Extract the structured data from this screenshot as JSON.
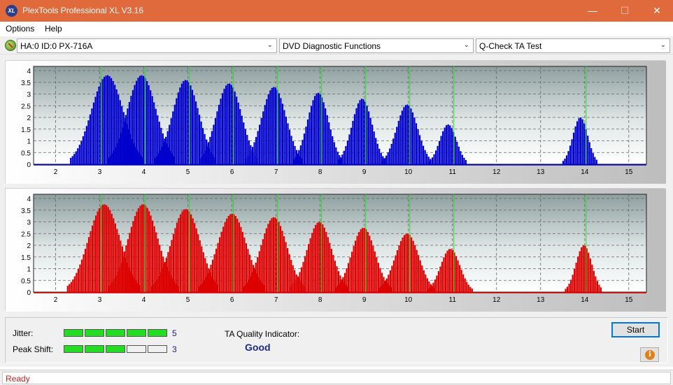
{
  "window": {
    "title": "PlexTools Professional XL V3.16",
    "app_icon_text": "XL",
    "minimize_glyph": "—",
    "maximize_glyph": "☐",
    "close_glyph": "✕"
  },
  "menu": {
    "items": [
      "Options",
      "Help"
    ]
  },
  "toolbar": {
    "drive": "HA:0 ID:0  PX-716A",
    "function": "DVD Diagnostic Functions",
    "test": "Q-Check TA Test",
    "arrow_glyph": "⌄"
  },
  "chart_data": [
    {
      "type": "bar",
      "series": [
        {
          "name": "",
          "color": "#0000cc"
        }
      ],
      "xlim": [
        1.5,
        15.4
      ],
      "ylim": [
        0,
        4
      ],
      "x_ticks": [
        "2",
        "3",
        "4",
        "5",
        "6",
        "7",
        "8",
        "9",
        "10",
        "11",
        "12",
        "13",
        "14",
        "15"
      ],
      "y_ticks": [
        "0",
        "0.5",
        "1",
        "1.5",
        "2",
        "2.5",
        "3",
        "3.5",
        "4"
      ],
      "marker_lines": [
        3,
        4,
        5,
        6,
        7,
        8,
        9,
        10,
        11,
        14
      ],
      "grid": true,
      "peaks": [
        {
          "center": 3.17,
          "height": 3.8,
          "width": 0.36
        },
        {
          "center": 3.95,
          "height": 3.8,
          "width": 0.33
        },
        {
          "center": 4.95,
          "height": 3.6,
          "width": 0.3
        },
        {
          "center": 5.93,
          "height": 3.45,
          "width": 0.29
        },
        {
          "center": 6.95,
          "height": 3.3,
          "width": 0.28
        },
        {
          "center": 7.95,
          "height": 3.05,
          "width": 0.24
        },
        {
          "center": 8.95,
          "height": 2.8,
          "width": 0.23
        },
        {
          "center": 9.97,
          "height": 2.55,
          "width": 0.24
        },
        {
          "center": 10.9,
          "height": 1.7,
          "width": 0.19
        },
        {
          "center": 13.9,
          "height": 2.0,
          "width": 0.17
        }
      ]
    },
    {
      "type": "bar",
      "series": [
        {
          "name": "",
          "color": "#dd0000"
        }
      ],
      "xlim": [
        1.5,
        15.4
      ],
      "ylim": [
        0,
        4
      ],
      "x_ticks": [
        "2",
        "3",
        "4",
        "5",
        "6",
        "7",
        "8",
        "9",
        "10",
        "11",
        "12",
        "13",
        "14",
        "15"
      ],
      "y_ticks": [
        "0",
        "0.5",
        "1",
        "1.5",
        "2",
        "2.5",
        "3",
        "3.5",
        "4"
      ],
      "marker_lines": [
        3,
        4,
        5,
        6,
        7,
        8,
        9,
        10,
        11,
        14
      ],
      "grid": true,
      "peaks": [
        {
          "center": 3.1,
          "height": 3.75,
          "width": 0.36
        },
        {
          "center": 3.98,
          "height": 3.75,
          "width": 0.34
        },
        {
          "center": 4.95,
          "height": 3.55,
          "width": 0.33
        },
        {
          "center": 6.0,
          "height": 3.35,
          "width": 0.33
        },
        {
          "center": 6.95,
          "height": 3.2,
          "width": 0.3
        },
        {
          "center": 7.98,
          "height": 3.0,
          "width": 0.28
        },
        {
          "center": 8.98,
          "height": 2.75,
          "width": 0.27
        },
        {
          "center": 9.97,
          "height": 2.5,
          "width": 0.27
        },
        {
          "center": 10.95,
          "height": 1.85,
          "width": 0.22
        },
        {
          "center": 13.98,
          "height": 2.0,
          "width": 0.18
        }
      ]
    }
  ],
  "results": {
    "jitter_label": "Jitter:",
    "jitter_value": "5",
    "peak_shift_label": "Peak Shift:",
    "peak_shift_value": "3",
    "quality_label": "TA Quality Indicator:",
    "quality_value": "Good",
    "segments_total": 5
  },
  "buttons": {
    "start": "Start",
    "info_glyph": "i"
  },
  "status": {
    "text": "Ready"
  }
}
